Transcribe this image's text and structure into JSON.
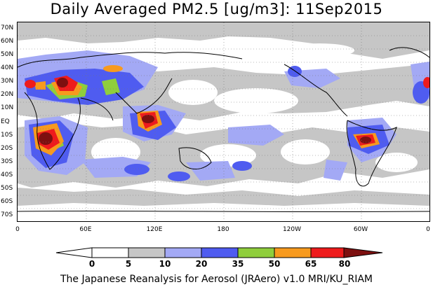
{
  "title": "Daily Averaged PM2.5 [ug/m3]: 11Sep2015",
  "footer": "The Japanese Reanalysis for Aerosol (JRAero) v1.0 MRI/KU_RIAM",
  "y_axis_labels": [
    "70N",
    "60N",
    "50N",
    "40N",
    "30N",
    "20N",
    "10N",
    "EQ",
    "10S",
    "20S",
    "30S",
    "40S",
    "50S",
    "60S",
    "70S"
  ],
  "x_axis_labels": [
    "0",
    "60E",
    "120E",
    "180",
    "120W",
    "60W",
    "0"
  ],
  "colorbar": {
    "levels": [
      "0",
      "5",
      "10",
      "20",
      "35",
      "50",
      "65",
      "80"
    ],
    "colors": [
      "#ffffff",
      "#c6c6c6",
      "#a3a9f5",
      "#4f5cf0",
      "#8fce3c",
      "#f79a1e",
      "#ee1b1c",
      "#7d1010"
    ]
  },
  "colors": {
    "grey": "#c6c6c6",
    "light_blue": "#a3a9f5",
    "blue": "#4f5cf0",
    "green": "#8fce3c",
    "orange": "#f79a1e",
    "red": "#ee1b1c",
    "dark_red": "#7d1010"
  }
}
